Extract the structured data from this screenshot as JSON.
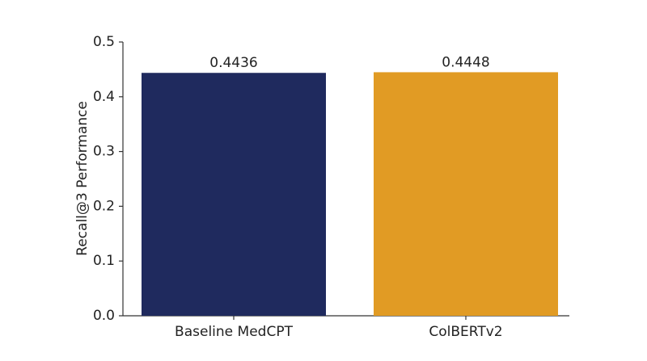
{
  "chart_data": {
    "type": "bar",
    "ylabel": "Recall@3 Performance",
    "categories": [
      "Baseline MedCPT",
      "ColBERTv2"
    ],
    "values": [
      0.4436,
      0.4448
    ],
    "colors": [
      "#1f2a5e",
      "#e19b24"
    ],
    "ylim": [
      0,
      0.5
    ],
    "yticks": [
      {
        "value": 0,
        "label": "0.0"
      },
      0.1,
      0.2,
      0.3,
      0.4,
      0.5
    ],
    "grid": false
  }
}
